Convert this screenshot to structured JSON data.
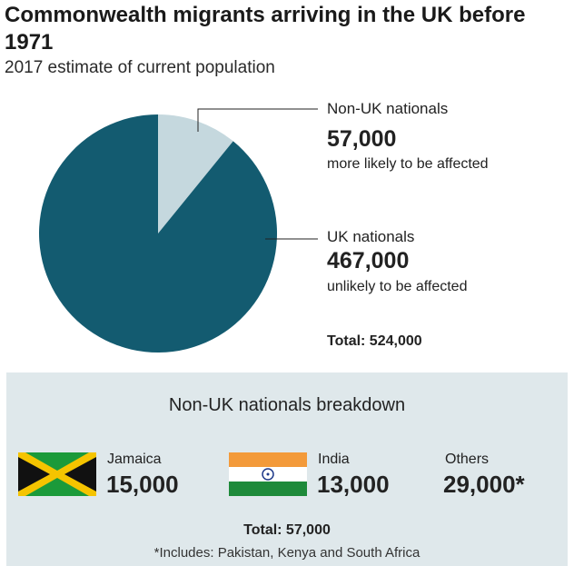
{
  "chart_data": {
    "type": "pie",
    "title": "Commonwealth migrants arriving in the UK before 1971",
    "subtitle": "2017 estimate of current population",
    "slices": [
      {
        "label": "Non-UK nationals",
        "value": 57000,
        "value_label": "57,000",
        "note": "more likely to be affected",
        "color": "#c5d8de"
      },
      {
        "label": "UK nationals",
        "value": 467000,
        "value_label": "467,000",
        "note": "unlikely to be affected",
        "color": "#135b70"
      }
    ],
    "total_label": "Total: 524,000"
  },
  "breakdown": {
    "title": "Non-UK nationals breakdown",
    "items": [
      {
        "country": "Jamaica",
        "value": 15000,
        "value_label": "15,000",
        "icon": "jamaica-flag-icon"
      },
      {
        "country": "India",
        "value": 13000,
        "value_label": "13,000",
        "icon": "india-flag-icon"
      },
      {
        "country": "Others",
        "value": 29000,
        "value_label": "29,000*"
      }
    ],
    "total_label": "Total: 57,000",
    "footnote": "*Includes: Pakistan, Kenya and South Africa"
  }
}
